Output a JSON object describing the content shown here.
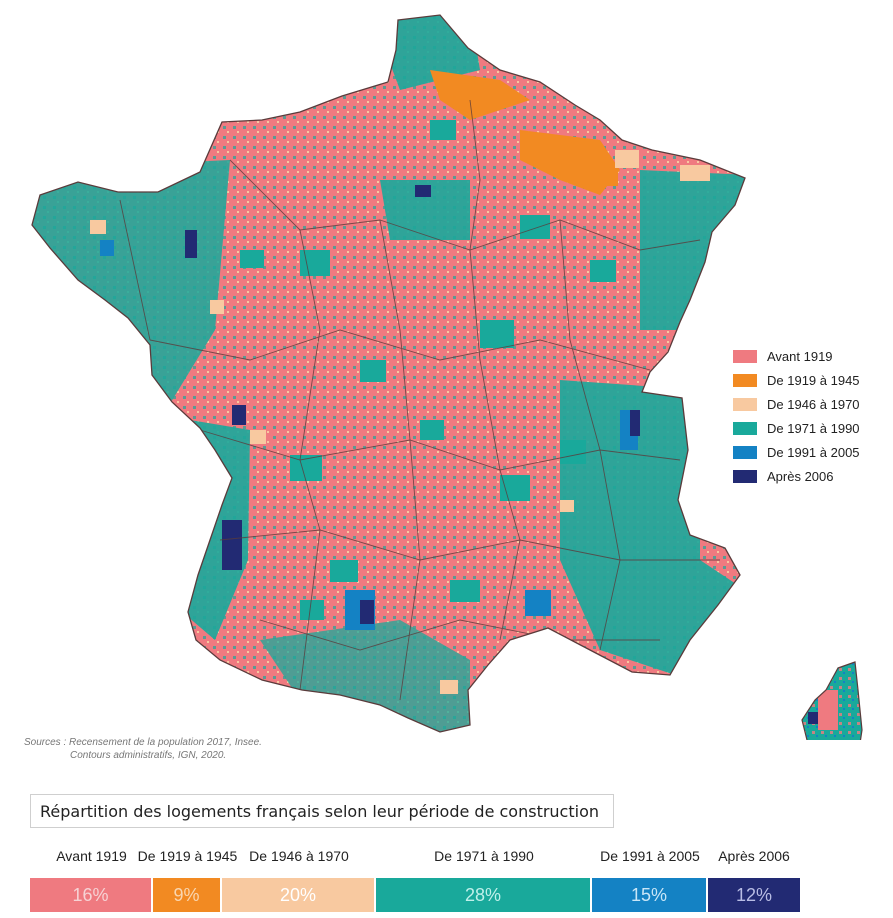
{
  "colors": {
    "avant_1919": "#ef7a80",
    "de_1919_1945": "#f28a22",
    "de_1946_1970": "#f8c9a0",
    "de_1971_1990": "#19a99b",
    "de_1991_2005": "#1482c4",
    "apres_2006": "#222a73",
    "boundary": "#5a3b3b"
  },
  "legend": {
    "items": [
      {
        "label": "Avant 1919",
        "color": "#ef7a80"
      },
      {
        "label": "De 1919 à 1945",
        "color": "#f28a22"
      },
      {
        "label": "De 1946 à 1970",
        "color": "#f8c9a0"
      },
      {
        "label": "De 1971 à 1990",
        "color": "#19a99b"
      },
      {
        "label": "De 1991 à 2005",
        "color": "#1482c4"
      },
      {
        "label": "Après 2006",
        "color": "#222a73"
      }
    ]
  },
  "sources": {
    "line1": "Sources : Recensement de la population 2017, Insee.",
    "line2": "Contours administratifs, IGN, 2020."
  },
  "title": "Répartition des logements français selon leur période de construction",
  "distribution": [
    {
      "label": "Avant 1919",
      "value": 16,
      "text": "16%",
      "color": "#ef7a80",
      "text_color": "#f6d2d4"
    },
    {
      "label": "De 1919 à 1945",
      "value": 9,
      "text": "9%",
      "color": "#f28a22",
      "text_color": "#f9d6b0"
    },
    {
      "label": "De 1946 à 1970",
      "value": 20,
      "text": "20%",
      "color": "#f8c9a0",
      "text_color": "#ffffff"
    },
    {
      "label": "De 1971 à 1990",
      "value": 28,
      "text": "28%",
      "color": "#19a99b",
      "text_color": "#bff0ea"
    },
    {
      "label": "De 1991 à 2005",
      "value": 15,
      "text": "15%",
      "color": "#1482c4",
      "text_color": "#c9e6f7"
    },
    {
      "label": "Après 2006",
      "value": 12,
      "text": "12%",
      "color": "#222a73",
      "text_color": "#b9bde5"
    }
  ]
}
